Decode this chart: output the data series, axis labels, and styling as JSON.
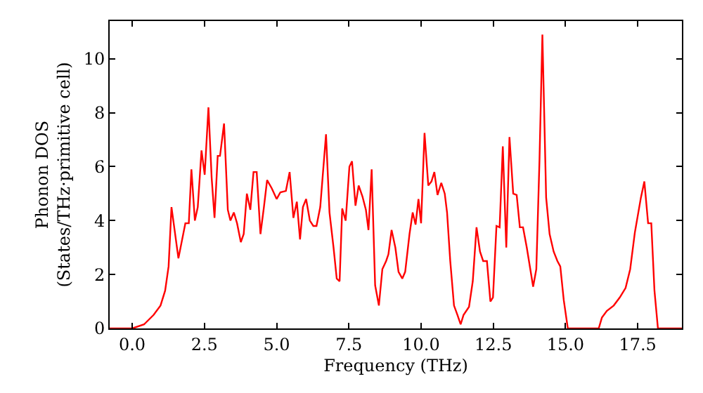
{
  "chart_data": {
    "type": "line",
    "xlabel": "Frequency (THz)",
    "ylabel": "Phonon DOS\n(States/THz·primitive cell)",
    "xlim": [
      -0.78,
      19.03
    ],
    "ylim": [
      0,
      11.4
    ],
    "xticks": [
      {
        "value": 0,
        "label": "0.0"
      },
      {
        "value": 2.5,
        "label": "2.5"
      },
      {
        "value": 5,
        "label": "5.0"
      },
      {
        "value": 7.5,
        "label": "7.5"
      },
      {
        "value": 10,
        "label": "10.0"
      },
      {
        "value": 12.5,
        "label": "12.5"
      },
      {
        "value": 15,
        "label": "15.0"
      },
      {
        "value": 17.5,
        "label": "17.5"
      }
    ],
    "yticks": [
      0,
      2,
      4,
      6,
      8,
      10
    ],
    "marker": "none",
    "line_style": "solid",
    "series": [
      {
        "color": "#ff0000",
        "x": [
          -0.78,
          0.0,
          0.41,
          0.74,
          0.98,
          1.14,
          1.26,
          1.36,
          1.6,
          1.84,
          1.96,
          2.05,
          2.17,
          2.27,
          2.4,
          2.51,
          2.64,
          2.75,
          2.85,
          2.96,
          3.04,
          3.18,
          3.31,
          3.4,
          3.52,
          3.63,
          3.76,
          3.86,
          3.97,
          4.09,
          4.2,
          4.31,
          4.44,
          4.56,
          4.67,
          4.83,
          5.0,
          5.13,
          5.32,
          5.45,
          5.58,
          5.7,
          5.81,
          5.91,
          6.02,
          6.15,
          6.27,
          6.38,
          6.51,
          6.71,
          6.83,
          6.97,
          7.08,
          7.18,
          7.27,
          7.39,
          7.52,
          7.61,
          7.73,
          7.84,
          7.97,
          8.09,
          8.18,
          8.29,
          8.41,
          8.54,
          8.66,
          8.79,
          8.87,
          8.98,
          9.11,
          9.22,
          9.35,
          9.45,
          9.6,
          9.71,
          9.81,
          9.91,
          10.0,
          10.12,
          10.25,
          10.36,
          10.46,
          10.57,
          10.7,
          10.82,
          10.9,
          11.01,
          11.14,
          11.26,
          11.37,
          11.47,
          11.66,
          11.79,
          11.92,
          12.04,
          12.15,
          12.28,
          12.4,
          12.49,
          12.61,
          12.72,
          12.83,
          12.95,
          13.06,
          13.19,
          13.31,
          13.42,
          13.53,
          13.66,
          13.88,
          13.99,
          14.1,
          14.2,
          14.33,
          14.45,
          14.59,
          14.72,
          14.82,
          14.94,
          15.08,
          16.15,
          16.26,
          16.43,
          16.67,
          16.88,
          17.08,
          17.24,
          17.4,
          17.61,
          17.73,
          17.86,
          17.97,
          18.08,
          18.2,
          19.03
        ],
        "values": [
          0,
          0,
          0.15,
          0.5,
          0.85,
          1.4,
          2.3,
          4.5,
          2.6,
          3.9,
          3.9,
          5.9,
          4.0,
          4.5,
          6.6,
          5.7,
          8.2,
          5.6,
          4.1,
          6.4,
          6.4,
          7.6,
          4.4,
          4.0,
          4.3,
          3.9,
          3.2,
          3.5,
          5.0,
          4.4,
          5.8,
          5.8,
          3.5,
          4.5,
          5.5,
          5.2,
          4.8,
          5.05,
          5.1,
          5.8,
          4.1,
          4.7,
          3.3,
          4.5,
          4.8,
          4.0,
          3.8,
          3.8,
          4.5,
          7.2,
          4.3,
          3.0,
          1.85,
          1.75,
          4.45,
          4.0,
          6.0,
          6.2,
          4.55,
          5.3,
          4.9,
          4.4,
          3.65,
          5.9,
          1.6,
          0.85,
          2.2,
          2.5,
          2.75,
          3.65,
          3.0,
          2.1,
          1.85,
          2.1,
          3.5,
          4.3,
          3.85,
          4.8,
          3.9,
          7.25,
          5.3,
          5.45,
          5.8,
          4.95,
          5.4,
          5.0,
          4.3,
          2.5,
          0.85,
          0.5,
          0.15,
          0.5,
          0.8,
          1.75,
          3.75,
          2.85,
          2.5,
          2.5,
          1.0,
          1.15,
          3.8,
          3.75,
          6.75,
          3.0,
          7.1,
          5.0,
          4.95,
          3.75,
          3.75,
          3.0,
          1.55,
          2.2,
          6.25,
          10.9,
          4.85,
          3.5,
          2.85,
          2.5,
          2.3,
          1.05,
          0,
          0,
          0.4,
          0.65,
          0.85,
          1.15,
          1.5,
          2.2,
          3.55,
          4.85,
          5.45,
          3.9,
          3.9,
          1.4,
          0,
          0
        ]
      }
    ]
  }
}
